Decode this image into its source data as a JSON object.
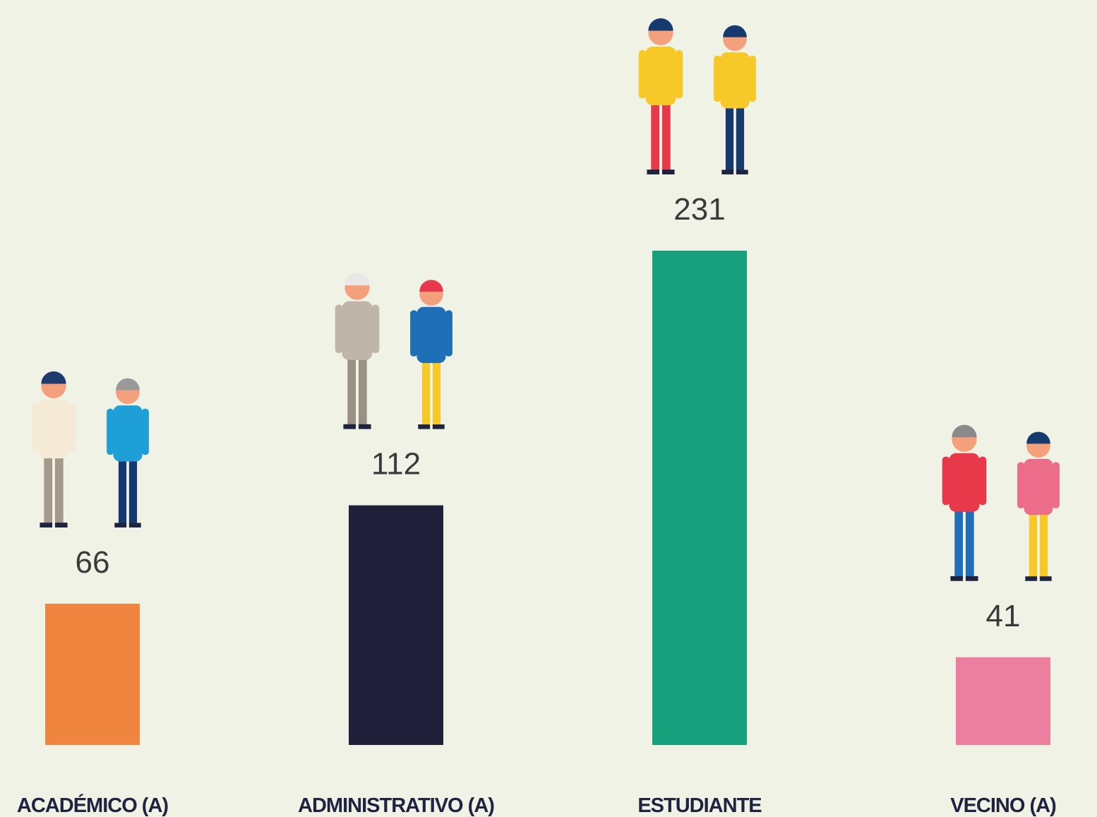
{
  "chart_data": {
    "type": "bar",
    "categories": [
      "ACADÉMICO (A)",
      "ADMINISTRATIVO (A)",
      "ESTUDIANTE",
      "VECINO (A)"
    ],
    "values": [
      66,
      112,
      231,
      41
    ],
    "colors": [
      "#f0853f",
      "#20203a",
      "#16a07b",
      "#ec7fa0"
    ]
  }
}
